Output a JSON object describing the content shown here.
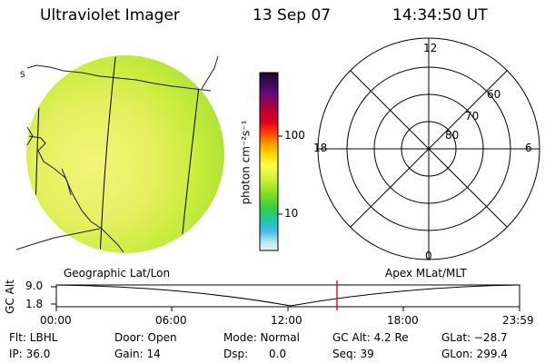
{
  "header": {
    "instrument": "Ultraviolet Imager",
    "date": "13 Sep 07",
    "time": "14:34:50 UT"
  },
  "image_panel": {
    "label": "Geographic Lat/Lon"
  },
  "colorbar": {
    "unit_label": "photon cm⁻²s⁻¹",
    "ticks": [
      "100",
      "10"
    ],
    "colors": [
      "#1a0a2a",
      "#3a0a5a",
      "#6a0a7a",
      "#c00030",
      "#e00020",
      "#ff5000",
      "#ff9a00",
      "#ffd800",
      "#ffff40",
      "#d0f040",
      "#80e020",
      "#30d040",
      "#20c8a0",
      "#40b8f0",
      "#b0e8f0",
      "#f0f0f0"
    ]
  },
  "polar_plot": {
    "label": "Apex MLat/MLT",
    "mlt_labels": {
      "top": "12",
      "left": "18",
      "right": "6",
      "bottom": "0"
    },
    "lat_labels": [
      "60",
      "70",
      "80"
    ]
  },
  "timeline": {
    "y_axis_label": "GC Alt",
    "y_ticks": [
      "9.0",
      "1.8"
    ],
    "x_ticks": [
      "00:00",
      "06:00",
      "12:00",
      "18:00",
      "23:59"
    ],
    "marker_color": "#d00000"
  },
  "status": {
    "filter": "Flt: LBHL",
    "ip": "IP: 36.0",
    "door": "Door: Open",
    "gain": "Gain: 14",
    "mode": "Mode: Normal",
    "dsp": "Dsp:      0.0",
    "gc_alt": "GC Alt: 4.2 Re",
    "seq": "Seq: 39",
    "glat": "GLat: −28.7",
    "glon": "GLon: 299.4"
  }
}
